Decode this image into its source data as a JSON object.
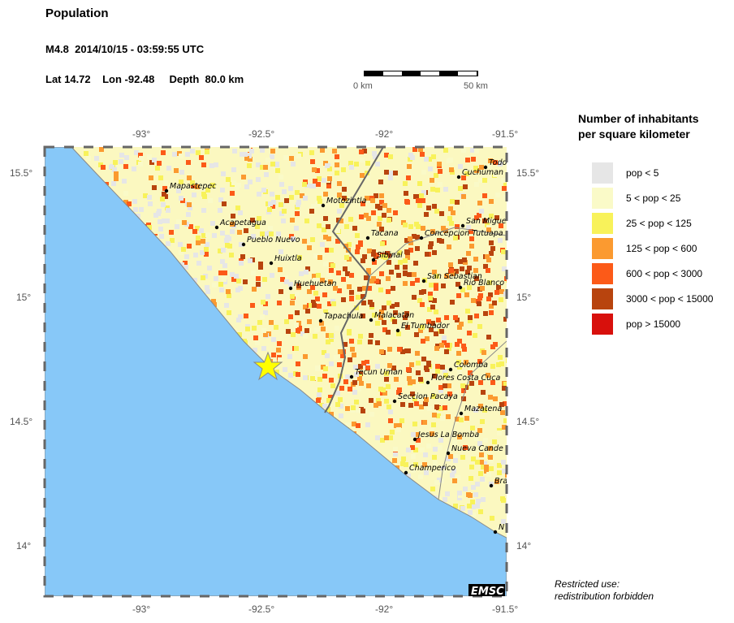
{
  "header": {
    "title": "Population",
    "event": "M4.8  2014/10/15 - 03:59:55 UTC",
    "location": "Lat 14.72    Lon -92.48     Depth  80.0 km"
  },
  "scale_bar": {
    "start": "0 km",
    "end": "50 km"
  },
  "legend": {
    "title_line1": "Number of inhabitants",
    "title_line2": "per square kilometer",
    "items": [
      {
        "label": "pop < 5",
        "color": "#e6e6e6"
      },
      {
        "label": "5 < pop < 25",
        "color": "#fafac8"
      },
      {
        "label": "25 < pop < 125",
        "color": "#f8f25a"
      },
      {
        "label": "125 < pop < 600",
        "color": "#fb9a30"
      },
      {
        "label": "600 < pop < 3000",
        "color": "#fc5a18"
      },
      {
        "label": "3000 < pop < 15000",
        "color": "#b8440e"
      },
      {
        "label": "pop > 15000",
        "color": "#d8100c"
      }
    ]
  },
  "axes": {
    "lon_ticks": [
      "-93°",
      "-92.5°",
      "-92°",
      "-91.5°"
    ],
    "lat_ticks": [
      "15.5°",
      "15°",
      "14.5°",
      "14°"
    ]
  },
  "cities": [
    "Mapastepec",
    "Motozintla",
    "Acapetagua",
    "Pueblo Nuevo",
    "Huixtla",
    "Huehuetan",
    "Tapachula",
    "Malacatan",
    "El Tumbador",
    "Tacana",
    "Sibinal",
    "Concepcion Tutuapa",
    "San Miguel Ixta",
    "Todos",
    "Cuchuman",
    "San Sebastian",
    "Rio Blanco",
    "Colomba",
    "Flores Costa Cuca",
    "Tecun Uman",
    "Seccion Pacaya",
    "Mazatena",
    "Jesus La Bomba",
    "Nueva Cande",
    "Champerico",
    "Bra",
    "N"
  ],
  "epicenter": {
    "magnitude": "M4.8",
    "color": "#ffff00"
  },
  "colors": {
    "ocean": "#87c8f8",
    "border": "#666666"
  },
  "logo": "EMSC",
  "note": {
    "line1": "Restricted use:",
    "line2": "redistribution forbidden"
  }
}
